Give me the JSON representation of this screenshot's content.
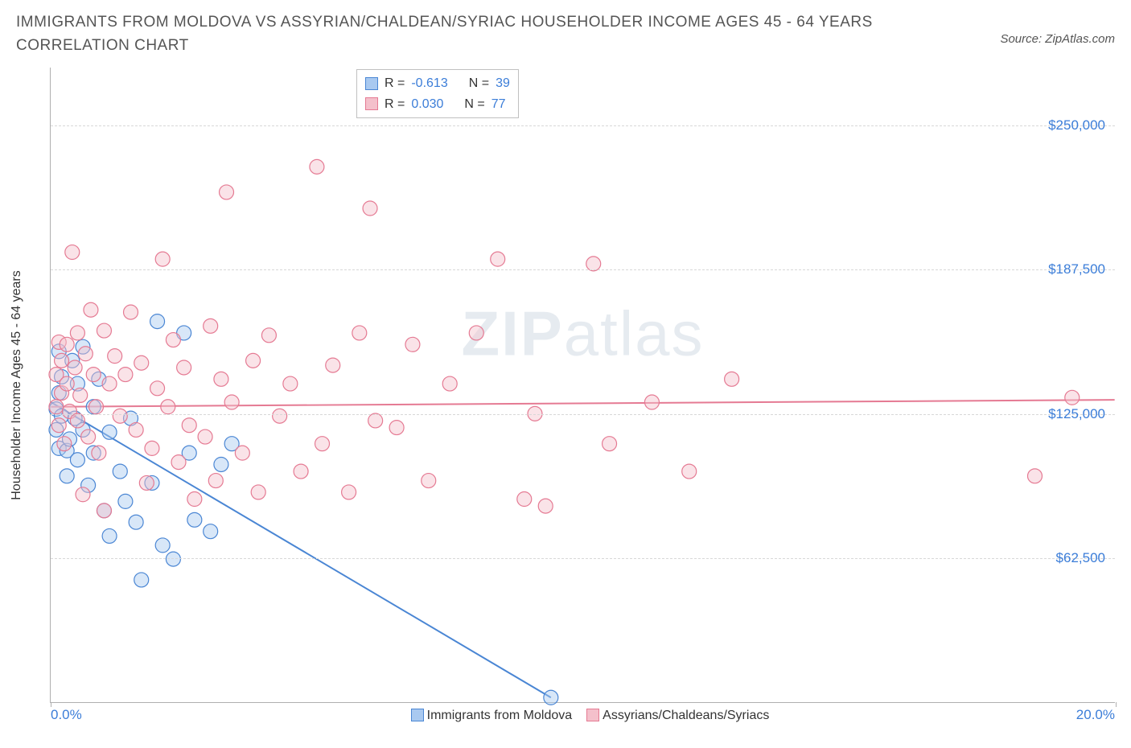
{
  "header": {
    "title": "IMMIGRANTS FROM MOLDOVA VS ASSYRIAN/CHALDEAN/SYRIAC HOUSEHOLDER INCOME AGES 45 - 64 YEARS CORRELATION CHART",
    "source": "Source: ZipAtlas.com"
  },
  "chart": {
    "type": "scatter",
    "y_label": "Householder Income Ages 45 - 64 years",
    "x_range": [
      0,
      20
    ],
    "y_range": [
      0,
      275000
    ],
    "x_ticks": [
      {
        "v": 0,
        "label": "0.0%"
      },
      {
        "v": 20,
        "label": "20.0%"
      }
    ],
    "y_ticks": [
      {
        "v": 62500,
        "label": "$62,500"
      },
      {
        "v": 125000,
        "label": "$125,000"
      },
      {
        "v": 187500,
        "label": "$187,500"
      },
      {
        "v": 250000,
        "label": "$250,000"
      }
    ],
    "grid_color": "#d8d8d8",
    "background_color": "#ffffff",
    "axis_color": "#b0b0b0",
    "tick_label_color": "#3b7dd8",
    "label_color": "#333333",
    "label_fontsize": 16,
    "tick_fontsize": 17,
    "marker_radius": 9,
    "marker_opacity": 0.45,
    "line_width": 2,
    "series": [
      {
        "id": "moldova",
        "legend_label": "Immigrants from Moldova",
        "fill": "#a9c9f0",
        "stroke": "#4a86d4",
        "R": "-0.613",
        "N": "39",
        "regression": {
          "x1": 0,
          "y1": 130000,
          "x2": 9.4,
          "y2": 2000
        },
        "points": [
          [
            0.1,
            127000
          ],
          [
            0.1,
            118000
          ],
          [
            0.15,
            152000
          ],
          [
            0.15,
            134000
          ],
          [
            0.15,
            110000
          ],
          [
            0.2,
            141000
          ],
          [
            0.2,
            124000
          ],
          [
            0.3,
            109000
          ],
          [
            0.3,
            98000
          ],
          [
            0.35,
            114000
          ],
          [
            0.4,
            148000
          ],
          [
            0.45,
            123000
          ],
          [
            0.5,
            138000
          ],
          [
            0.5,
            105000
          ],
          [
            0.6,
            154000
          ],
          [
            0.6,
            118000
          ],
          [
            0.7,
            94000
          ],
          [
            0.8,
            108000
          ],
          [
            0.8,
            128000
          ],
          [
            0.9,
            140000
          ],
          [
            1.0,
            83000
          ],
          [
            1.1,
            117000
          ],
          [
            1.1,
            72000
          ],
          [
            1.3,
            100000
          ],
          [
            1.4,
            87000
          ],
          [
            1.5,
            123000
          ],
          [
            1.6,
            78000
          ],
          [
            1.7,
            53000
          ],
          [
            1.9,
            95000
          ],
          [
            2.0,
            165000
          ],
          [
            2.1,
            68000
          ],
          [
            2.3,
            62000
          ],
          [
            2.5,
            160000
          ],
          [
            2.6,
            108000
          ],
          [
            2.7,
            79000
          ],
          [
            3.0,
            74000
          ],
          [
            3.2,
            103000
          ],
          [
            3.4,
            112000
          ],
          [
            9.4,
            2000
          ]
        ]
      },
      {
        "id": "assyrian",
        "legend_label": "Assyrians/Chaldeans/Syriacs",
        "fill": "#f4c0cb",
        "stroke": "#e57a93",
        "R": "0.030",
        "N": "77",
        "regression": {
          "x1": 0,
          "y1": 128000,
          "x2": 20,
          "y2": 131000
        },
        "points": [
          [
            0.1,
            128000
          ],
          [
            0.1,
            142000
          ],
          [
            0.15,
            156000
          ],
          [
            0.15,
            120000
          ],
          [
            0.2,
            134000
          ],
          [
            0.2,
            148000
          ],
          [
            0.25,
            112000
          ],
          [
            0.3,
            155000
          ],
          [
            0.3,
            138000
          ],
          [
            0.35,
            126000
          ],
          [
            0.4,
            195000
          ],
          [
            0.45,
            145000
          ],
          [
            0.5,
            122000
          ],
          [
            0.5,
            160000
          ],
          [
            0.55,
            133000
          ],
          [
            0.6,
            90000
          ],
          [
            0.65,
            151000
          ],
          [
            0.7,
            115000
          ],
          [
            0.75,
            170000
          ],
          [
            0.8,
            142000
          ],
          [
            0.85,
            128000
          ],
          [
            0.9,
            108000
          ],
          [
            1.0,
            83000
          ],
          [
            1.0,
            161000
          ],
          [
            1.1,
            138000
          ],
          [
            1.2,
            150000
          ],
          [
            1.3,
            124000
          ],
          [
            1.4,
            142000
          ],
          [
            1.5,
            169000
          ],
          [
            1.6,
            118000
          ],
          [
            1.7,
            147000
          ],
          [
            1.8,
            95000
          ],
          [
            1.9,
            110000
          ],
          [
            2.0,
            136000
          ],
          [
            2.1,
            192000
          ],
          [
            2.2,
            128000
          ],
          [
            2.3,
            157000
          ],
          [
            2.4,
            104000
          ],
          [
            2.5,
            145000
          ],
          [
            2.6,
            120000
          ],
          [
            2.7,
            88000
          ],
          [
            2.9,
            115000
          ],
          [
            3.0,
            163000
          ],
          [
            3.1,
            96000
          ],
          [
            3.2,
            140000
          ],
          [
            3.3,
            221000
          ],
          [
            3.4,
            130000
          ],
          [
            3.6,
            108000
          ],
          [
            3.8,
            148000
          ],
          [
            3.9,
            91000
          ],
          [
            4.1,
            159000
          ],
          [
            4.3,
            124000
          ],
          [
            4.5,
            138000
          ],
          [
            4.7,
            100000
          ],
          [
            5.0,
            232000
          ],
          [
            5.1,
            112000
          ],
          [
            5.3,
            146000
          ],
          [
            5.6,
            91000
          ],
          [
            5.8,
            160000
          ],
          [
            6.0,
            214000
          ],
          [
            6.1,
            122000
          ],
          [
            6.5,
            119000
          ],
          [
            6.8,
            155000
          ],
          [
            7.1,
            96000
          ],
          [
            7.5,
            138000
          ],
          [
            8.0,
            160000
          ],
          [
            8.4,
            192000
          ],
          [
            8.9,
            88000
          ],
          [
            9.1,
            125000
          ],
          [
            9.3,
            85000
          ],
          [
            10.2,
            190000
          ],
          [
            10.5,
            112000
          ],
          [
            11.3,
            130000
          ],
          [
            12.0,
            100000
          ],
          [
            12.8,
            140000
          ],
          [
            18.5,
            98000
          ],
          [
            19.2,
            132000
          ]
        ]
      }
    ],
    "watermark": {
      "bold": "ZIP",
      "rest": "atlas"
    }
  },
  "stats_box": {
    "rows": [
      {
        "swatch_series": "moldova",
        "R_label": "R =",
        "N_label": "N ="
      },
      {
        "swatch_series": "assyrian",
        "R_label": "R =",
        "N_label": "N ="
      }
    ]
  }
}
